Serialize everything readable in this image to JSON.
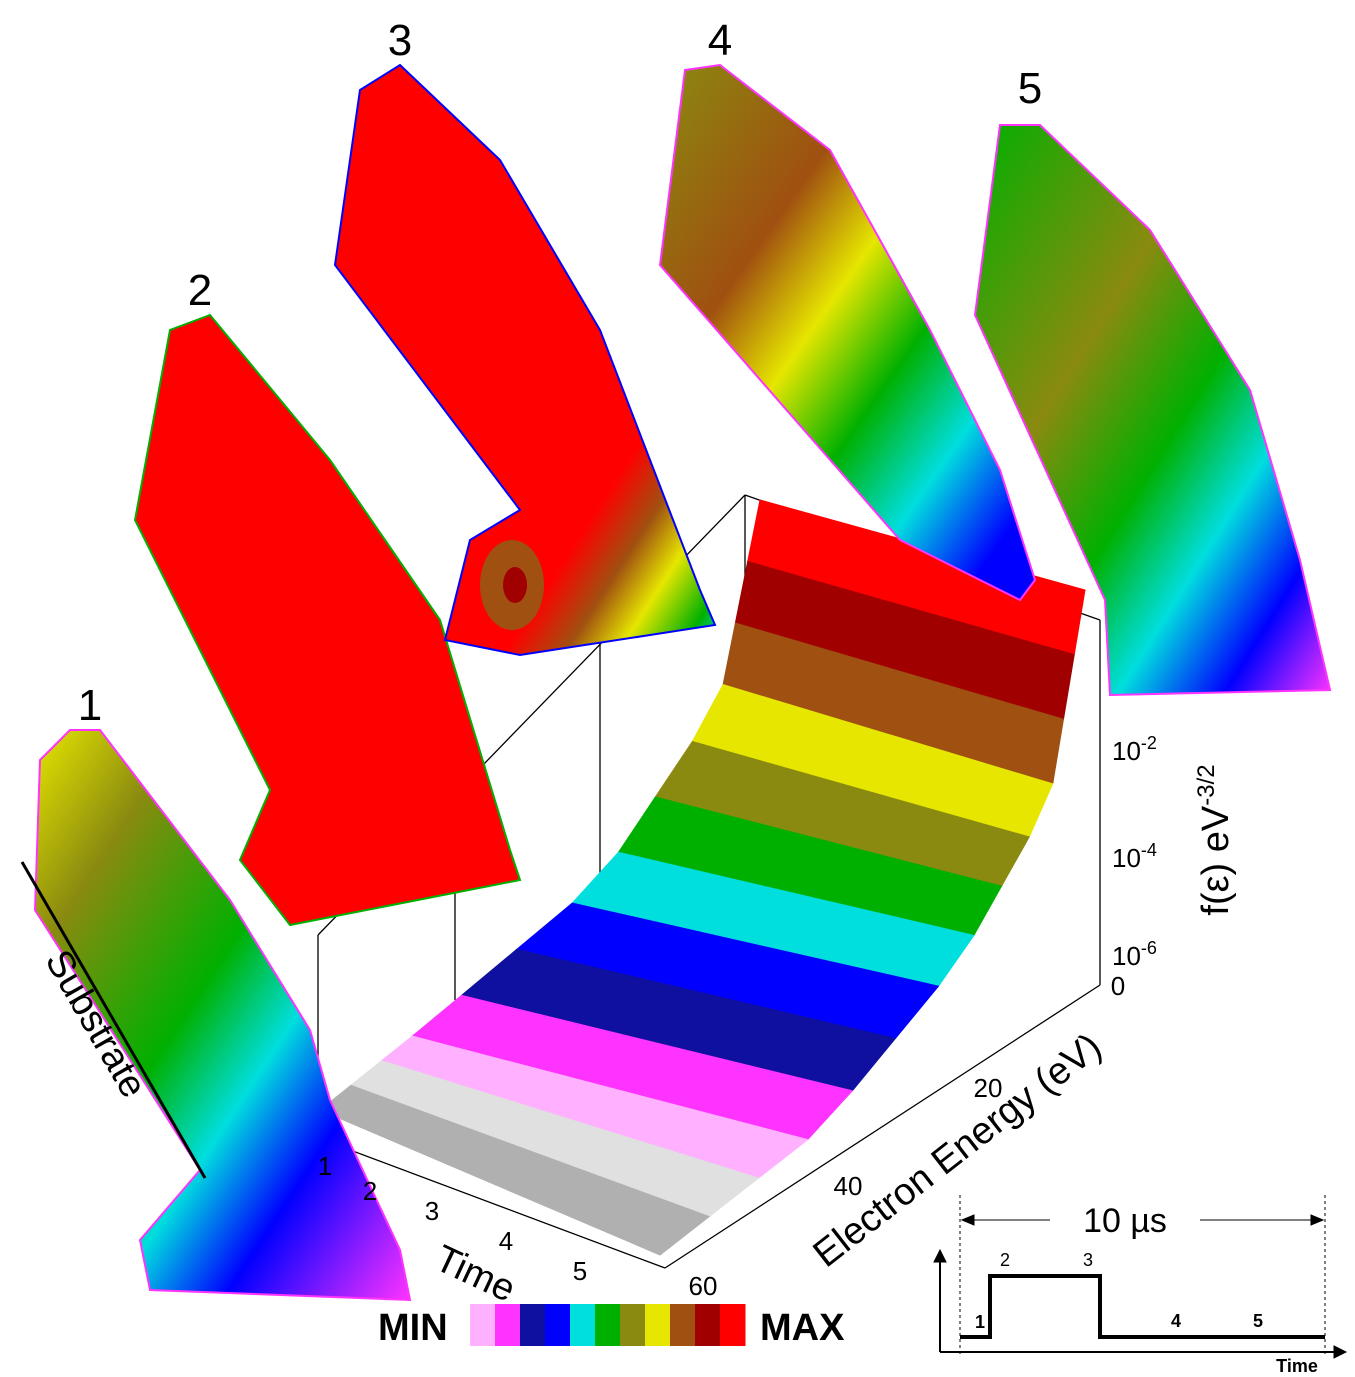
{
  "panels": [
    "1",
    "2",
    "3",
    "4",
    "5"
  ],
  "substrate_label": "Substrate",
  "time_axis": {
    "label": "Time",
    "ticks": [
      "1",
      "2",
      "3",
      "4",
      "5"
    ]
  },
  "energy_axis": {
    "label": "Electron Energy (eV)",
    "ticks": [
      "0",
      "20",
      "40",
      "60"
    ]
  },
  "f_axis": {
    "label": {
      "base": "f(ε) eV",
      "exp": "-3/2"
    },
    "ticks": [
      {
        "base": "10",
        "exp": "-2"
      },
      {
        "base": "10",
        "exp": "-4"
      },
      {
        "base": "10",
        "exp": "-6"
      }
    ]
  },
  "colorbar": {
    "min_label": "MIN",
    "max_label": "MAX",
    "colors": [
      "#ffb0ff",
      "#ff33ff",
      "#1010a0",
      "#0000ff",
      "#00dede",
      "#00b000",
      "#8a8a10",
      "#e6e600",
      "#a05010",
      "#a00000",
      "#ff0000"
    ]
  },
  "inset": {
    "duration": "10 µs",
    "phases": [
      "1",
      "2",
      "3",
      "4",
      "5"
    ],
    "x_label": "Time"
  }
}
